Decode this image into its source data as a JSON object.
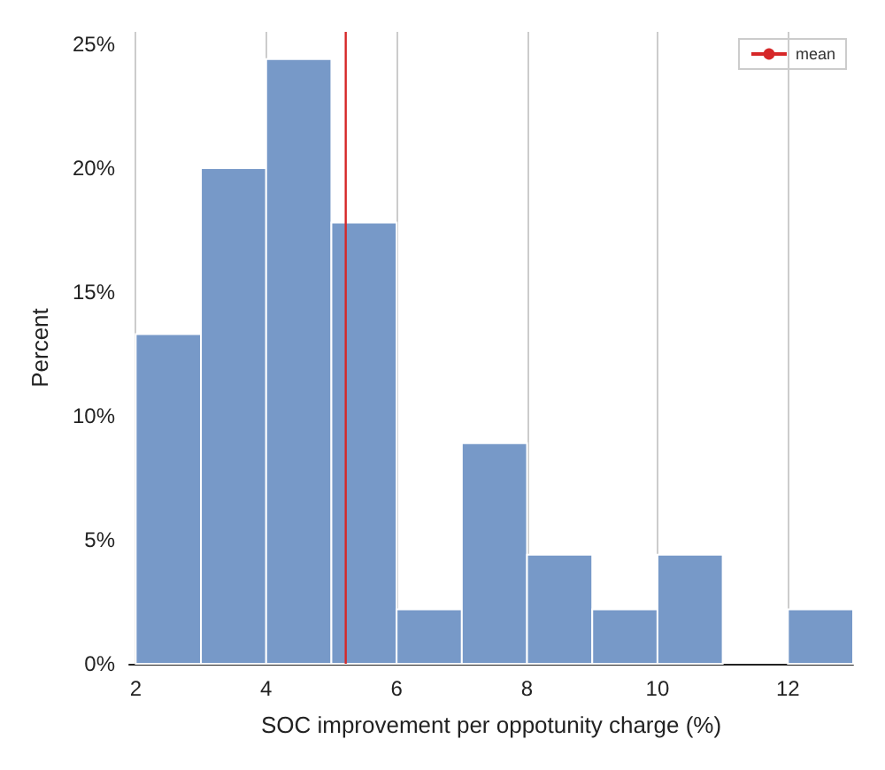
{
  "chart_data": {
    "type": "histogram",
    "xlabel": "SOC improvement per oppotunity charge (%)",
    "ylabel": "Percent",
    "bins": [
      2,
      3,
      4,
      5,
      6,
      7,
      8,
      9,
      10,
      11,
      12,
      13
    ],
    "series": [
      {
        "color": "#7799c8",
        "values": [
          13.3,
          20,
          24.4,
          17.8,
          2.2,
          8.9,
          4.4,
          2.2,
          4.4,
          0,
          2.2
        ]
      },
      {
        "name": "mean",
        "type": "line",
        "color": "#d62728",
        "x": [
          5.22,
          5.22
        ],
        "values": [
          0,
          25.5
        ]
      }
    ],
    "xlim": [
      1.9,
      13
    ],
    "xticks": [
      2,
      4,
      6,
      8,
      10,
      12
    ],
    "ylim": [
      0,
      25.5
    ],
    "yticks": [
      {
        "value": 0,
        "label": "0%"
      },
      {
        "value": 5,
        "label": "5%"
      },
      {
        "value": 10,
        "label": "10%"
      },
      {
        "value": 15,
        "label": "15%"
      },
      {
        "value": 20,
        "label": "20%"
      },
      {
        "value": 25,
        "label": "25%"
      }
    ],
    "grid": "x",
    "legend": "top right"
  }
}
